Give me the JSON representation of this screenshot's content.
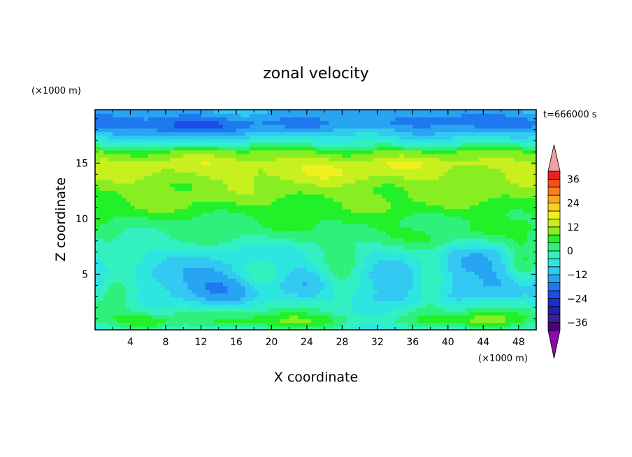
{
  "chart_data": {
    "type": "heatmap",
    "title": "zonal velocity",
    "xlabel": "X coordinate",
    "ylabel": "Z coordinate",
    "x_unit": "(×1000 m)",
    "y_unit": "(×1000 m)",
    "time_label": "t=666000 s",
    "xlim": [
      0,
      50
    ],
    "ylim": [
      0,
      19.8
    ],
    "x_ticks": [
      4,
      8,
      12,
      16,
      20,
      24,
      28,
      32,
      36,
      40,
      44,
      48
    ],
    "y_ticks": [
      5,
      10,
      15
    ],
    "colorbar": {
      "levels": [
        -40,
        -36,
        -32,
        -28,
        -24,
        -20,
        -16,
        -12,
        -8,
        -4,
        0,
        4,
        8,
        12,
        16,
        20,
        24,
        28,
        32,
        36,
        40
      ],
      "labels": [
        36,
        24,
        12,
        0,
        -12,
        -24,
        -36
      ],
      "colors": [
        "#4b0082",
        "#3a1e9a",
        "#1f1fb0",
        "#1a2ed0",
        "#1c4de6",
        "#1e78f0",
        "#27a4f2",
        "#33c9f2",
        "#2ee6e0",
        "#33f0c0",
        "#2ef07a",
        "#22f028",
        "#88ee22",
        "#c8f01e",
        "#f0f01e",
        "#f5d21e",
        "#f5aa1e",
        "#f5821e",
        "#f0501e",
        "#e6231e"
      ],
      "under_color": "#8a0aa8",
      "over_color": "#f0a0a0"
    },
    "profile": [
      {
        "z": 0.0,
        "u": -6
      },
      {
        "z": 1.0,
        "u": 2
      },
      {
        "z": 2.0,
        "u": -2
      },
      {
        "z": 3.0,
        "u": -8
      },
      {
        "z": 4.0,
        "u": -10
      },
      {
        "z": 5.0,
        "u": -9
      },
      {
        "z": 6.0,
        "u": -7
      },
      {
        "z": 7.0,
        "u": -5
      },
      {
        "z": 8.0,
        "u": -1
      },
      {
        "z": 9.0,
        "u": 2
      },
      {
        "z": 10.0,
        "u": 4
      },
      {
        "z": 11.0,
        "u": 7
      },
      {
        "z": 12.0,
        "u": 9
      },
      {
        "z": 13.0,
        "u": 10
      },
      {
        "z": 14.0,
        "u": 12
      },
      {
        "z": 15.0,
        "u": 13
      },
      {
        "z": 16.0,
        "u": 8
      },
      {
        "z": 16.8,
        "u": -2
      },
      {
        "z": 17.5,
        "u": -9
      },
      {
        "z": 18.5,
        "u": -16
      },
      {
        "z": 19.8,
        "u": -12
      }
    ],
    "anomalies": [
      {
        "x": 14,
        "z": 4.0,
        "rx": 5,
        "rz": 2.0,
        "du": -6
      },
      {
        "x": 31,
        "z": 2.0,
        "rx": 5,
        "rz": 1.8,
        "du": -5
      },
      {
        "x": 43,
        "z": 5.8,
        "rx": 5,
        "rz": 2.2,
        "du": -5
      },
      {
        "x": 2.5,
        "z": 4.0,
        "rx": 2.5,
        "rz": 2.0,
        "du": 12
      },
      {
        "x": 19,
        "z": 4.8,
        "rx": 2.5,
        "rz": 1.6,
        "du": 8
      },
      {
        "x": 28,
        "z": 4.8,
        "rx": 2.5,
        "rz": 3.0,
        "du": 10
      },
      {
        "x": 38,
        "z": 4.0,
        "rx": 2.0,
        "rz": 3.0,
        "du": 9
      },
      {
        "x": 48.5,
        "z": 6.0,
        "rx": 2.0,
        "rz": 2.5,
        "du": 10
      },
      {
        "x": 22,
        "z": 0.5,
        "rx": 6,
        "rz": 0.9,
        "du": 10
      },
      {
        "x": 44,
        "z": 0.6,
        "rx": 4,
        "rz": 1.0,
        "du": 9
      },
      {
        "x": 6,
        "z": 0.6,
        "rx": 3,
        "rz": 0.8,
        "du": 8
      },
      {
        "x": 25,
        "z": 14.5,
        "rx": 12,
        "rz": 1.2,
        "du": 3
      },
      {
        "x": 9,
        "z": 18.3,
        "rx": 7,
        "rz": 1.0,
        "du": -7
      },
      {
        "x": 41,
        "z": 19.1,
        "rx": 5,
        "rz": 0.8,
        "du": -5
      },
      {
        "x": 36,
        "z": 8.5,
        "rx": 10,
        "rz": 1.0,
        "du": 3
      }
    ]
  }
}
